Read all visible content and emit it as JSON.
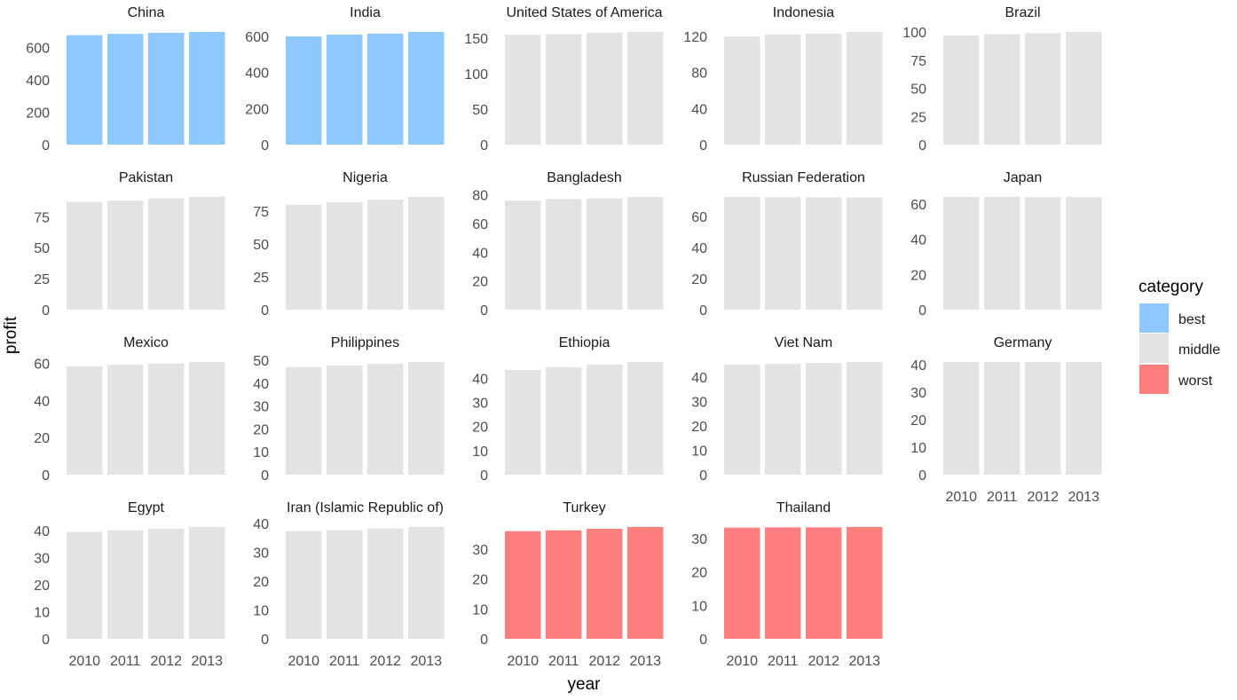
{
  "chart_data": {
    "type": "bar",
    "faceted": true,
    "xlabel": "year",
    "ylabel": "profit",
    "categories": [
      "2010",
      "2011",
      "2012",
      "2013"
    ],
    "legend": {
      "title": "category",
      "placement": "right",
      "entries": [
        {
          "label": "best",
          "color": "#8ec8ff"
        },
        {
          "label": "middle",
          "color": "#e3e3e3"
        },
        {
          "label": "worst",
          "color": "#ff7f7f"
        }
      ]
    },
    "grid": false,
    "panels": [
      {
        "title": "China",
        "category": "best",
        "values": [
          675,
          683,
          690,
          695
        ],
        "ylim": [
          0,
          695
        ],
        "yticks": [
          0,
          200,
          400,
          600
        ]
      },
      {
        "title": "India",
        "category": "best",
        "values": [
          600,
          610,
          616,
          625
        ],
        "ylim": [
          0,
          625
        ],
        "yticks": [
          0,
          200,
          400,
          600
        ]
      },
      {
        "title": "United States of America",
        "category": "middle",
        "values": [
          155,
          156,
          158,
          159
        ],
        "ylim": [
          0,
          159
        ],
        "yticks": [
          0,
          50,
          100,
          150
        ]
      },
      {
        "title": "Indonesia",
        "category": "middle",
        "values": [
          120,
          122,
          123,
          125
        ],
        "ylim": [
          0,
          125
        ],
        "yticks": [
          0,
          40,
          80,
          120
        ]
      },
      {
        "title": "Brazil",
        "category": "middle",
        "values": [
          97,
          98,
          99,
          100
        ],
        "ylim": [
          0,
          100
        ],
        "yticks": [
          0,
          25,
          50,
          75,
          100
        ]
      },
      {
        "title": "Pakistan",
        "category": "middle",
        "values": [
          87,
          88,
          90,
          91
        ],
        "ylim": [
          0,
          91
        ],
        "yticks": [
          0,
          25,
          50,
          75
        ]
      },
      {
        "title": "Nigeria",
        "category": "middle",
        "values": [
          80,
          82,
          84,
          86
        ],
        "ylim": [
          0,
          86
        ],
        "yticks": [
          0,
          25,
          50,
          75
        ]
      },
      {
        "title": "Bangladesh",
        "category": "middle",
        "values": [
          76,
          77,
          77.5,
          78.5
        ],
        "ylim": [
          0,
          78.5
        ],
        "yticks": [
          0,
          20,
          40,
          60,
          80
        ]
      },
      {
        "title": "Russian Federation",
        "category": "middle",
        "values": [
          72.5,
          72.4,
          72.3,
          72.2
        ],
        "ylim": [
          0,
          72.5
        ],
        "yticks": [
          0,
          20,
          40,
          60
        ]
      },
      {
        "title": "Japan",
        "category": "middle",
        "values": [
          64,
          64,
          63.9,
          63.9
        ],
        "ylim": [
          0,
          64
        ],
        "yticks": [
          0,
          20,
          40,
          60
        ]
      },
      {
        "title": "Mexico",
        "category": "middle",
        "values": [
          58.5,
          59.3,
          60,
          60.8
        ],
        "ylim": [
          0,
          60.8
        ],
        "yticks": [
          0,
          20,
          40,
          60
        ]
      },
      {
        "title": "Philippines",
        "category": "middle",
        "values": [
          47,
          47.8,
          48.5,
          49.3
        ],
        "ylim": [
          0,
          49.3
        ],
        "yticks": [
          0,
          10,
          20,
          30,
          40,
          50
        ]
      },
      {
        "title": "Ethiopia",
        "category": "middle",
        "values": [
          43.5,
          44.6,
          45.7,
          46.8
        ],
        "ylim": [
          0,
          46.8
        ],
        "yticks": [
          0,
          10,
          20,
          30,
          40
        ]
      },
      {
        "title": "Viet Nam",
        "category": "middle",
        "values": [
          45,
          45.4,
          45.8,
          46.2
        ],
        "ylim": [
          0,
          46.2
        ],
        "yticks": [
          0,
          10,
          20,
          30,
          40
        ]
      },
      {
        "title": "Germany",
        "category": "middle",
        "values": [
          41,
          41,
          41,
          41
        ],
        "ylim": [
          0,
          41
        ],
        "yticks": [
          0,
          10,
          20,
          30,
          40
        ]
      },
      {
        "title": "Egypt",
        "category": "middle",
        "values": [
          39.5,
          40,
          40.7,
          41.3
        ],
        "ylim": [
          0,
          41.3
        ],
        "yticks": [
          0,
          10,
          20,
          30,
          40
        ]
      },
      {
        "title": "Iran (Islamic Republic of)",
        "category": "middle",
        "values": [
          37.3,
          37.6,
          38.2,
          38.7
        ],
        "ylim": [
          0,
          38.7
        ],
        "yticks": [
          0,
          10,
          20,
          30,
          40
        ]
      },
      {
        "title": "Turkey",
        "category": "worst",
        "values": [
          36,
          36.3,
          36.8,
          37.4
        ],
        "ylim": [
          0,
          37.4
        ],
        "yticks": [
          0,
          10,
          20,
          30
        ]
      },
      {
        "title": "Thailand",
        "category": "worst",
        "values": [
          33.2,
          33.3,
          33.3,
          33.4
        ],
        "ylim": [
          0,
          33.4
        ],
        "yticks": [
          0,
          10,
          20,
          30
        ]
      }
    ]
  }
}
